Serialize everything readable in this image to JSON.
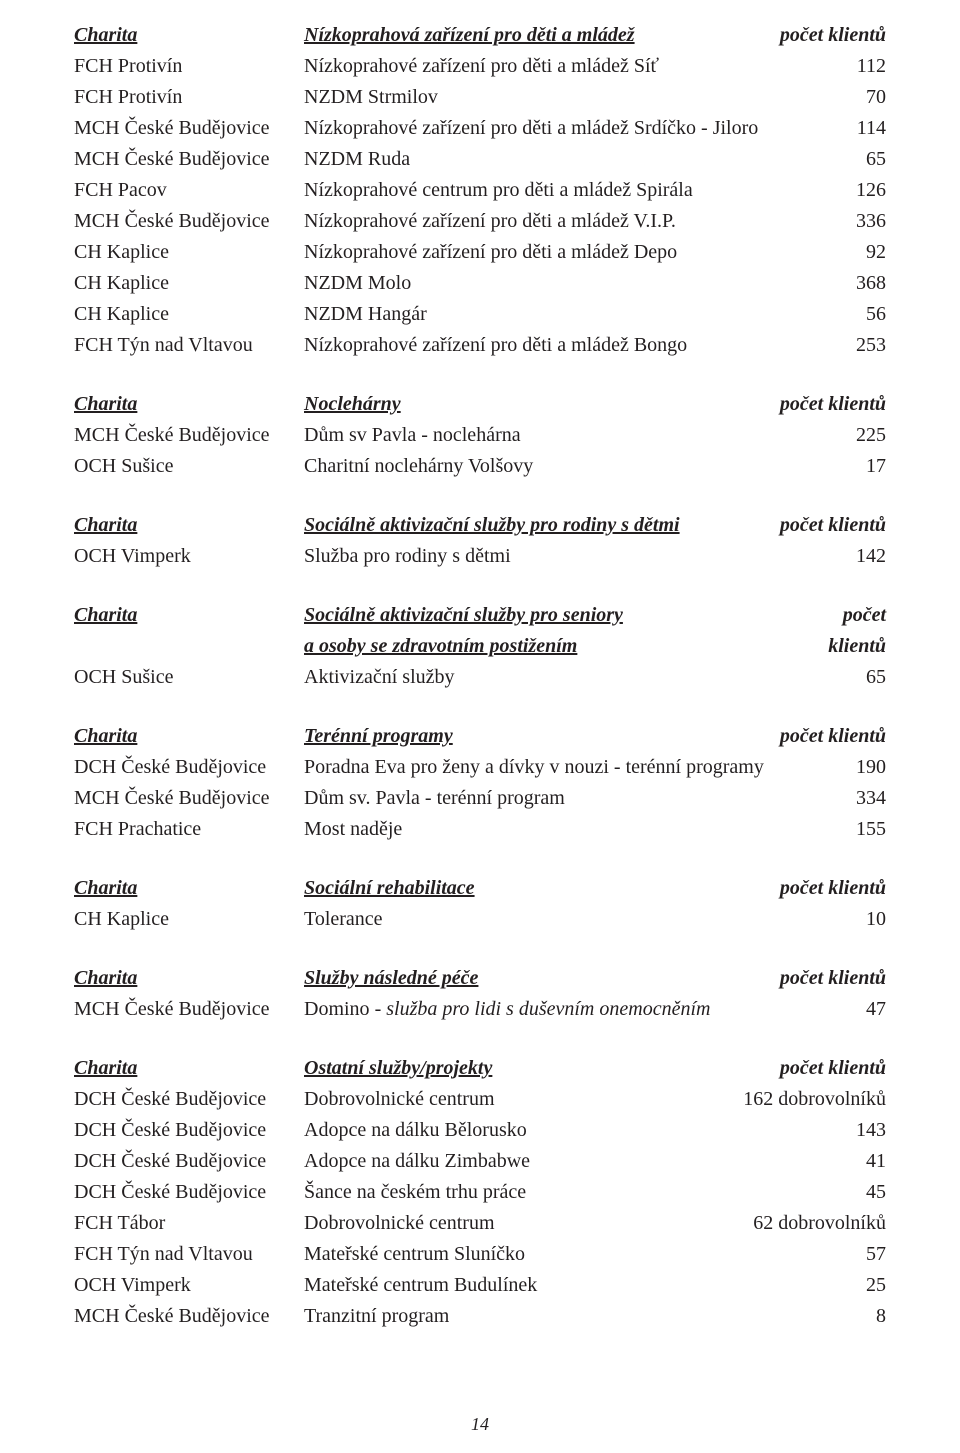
{
  "page_number": "14",
  "labels": {
    "charita": "Charita",
    "pocet_klientu": "počet klientů",
    "pocet": "počet",
    "klientu": "klientů"
  },
  "sections": [
    {
      "title": "Nízkoprahová zařízení pro děti a mládež",
      "count_label": "počet klientů",
      "rows": [
        {
          "org": "FCH Protivín",
          "svc": "Nízkoprahové zařízení pro děti a mládež Síť",
          "val": "112"
        },
        {
          "org": "FCH Protivín",
          "svc": "NZDM Strmilov",
          "val": "70"
        },
        {
          "org": "MCH České Budějovice",
          "svc": "Nízkoprahové zařízení pro děti a mládež Srdíčko - Jiloro",
          "val": "114"
        },
        {
          "org": "MCH České Budějovice",
          "svc": "NZDM Ruda",
          "val": "65"
        },
        {
          "org": "FCH Pacov",
          "svc": "Nízkoprahové centrum pro děti a mládež Spirála",
          "val": "126"
        },
        {
          "org": "MCH České Budějovice",
          "svc": "Nízkoprahové zařízení pro děti a mládež V.I.P.",
          "val": "336"
        },
        {
          "org": "CH Kaplice",
          "svc": "Nízkoprahové zařízení pro děti a mládež Depo",
          "val": "92"
        },
        {
          "org": "CH Kaplice",
          "svc": "NZDM Molo",
          "val": "368"
        },
        {
          "org": "CH Kaplice",
          "svc": "NZDM Hangár",
          "val": "56"
        },
        {
          "org": "FCH Týn nad Vltavou",
          "svc": "Nízkoprahové zařízení pro děti a mládež Bongo",
          "val": "253"
        }
      ]
    },
    {
      "title": "Noclehárny",
      "count_label": "počet klientů",
      "rows": [
        {
          "org": "MCH České Budějovice",
          "svc": "Dům sv Pavla - noclehárna",
          "val": "225"
        },
        {
          "org": "OCH Sušice",
          "svc": "Charitní noclehárny Volšovy",
          "val": "17"
        }
      ]
    },
    {
      "title": "Sociálně aktivizační služby pro rodiny s dětmi",
      "count_label": "počet klientů",
      "rows": [
        {
          "org": "OCH Vimperk",
          "svc": "Služba pro rodiny s dětmi",
          "val": "142"
        }
      ]
    },
    {
      "title": "Sociálně aktivizační služby pro seniory",
      "title2": "a osoby se zdravotním postižením",
      "count_label_split": true,
      "rows": [
        {
          "org": "OCH Sušice",
          "svc": "Aktivizační služby",
          "val": "65"
        }
      ]
    },
    {
      "title": "Terénní programy",
      "count_label": "počet klientů",
      "rows": [
        {
          "org": "DCH České Budějovice",
          "svc": "Poradna Eva pro ženy a dívky v nouzi - terénní programy",
          "val": "190"
        },
        {
          "org": "MCH České Budějovice",
          "svc": "Dům sv. Pavla - terénní program",
          "val": "334"
        },
        {
          "org": "FCH Prachatice",
          "svc": "Most naděje",
          "val": "155"
        }
      ]
    },
    {
      "title": "Sociální rehabilitace",
      "count_label": "počet klientů",
      "rows": [
        {
          "org": "CH Kaplice",
          "svc": "Tolerance",
          "val": "10"
        }
      ]
    },
    {
      "title": "Služby následné péče",
      "count_label": "počet klientů",
      "rows": [
        {
          "org": "MCH České Budějovice",
          "svc": "Domino - služba pro lidi s duševním onemocněním",
          "svc_italic_from": "- služba pro lidi s duševním onemocněním",
          "val": "47"
        }
      ]
    },
    {
      "title": "Ostatní služby/projekty",
      "count_label": "počet klientů",
      "rows": [
        {
          "org": "DCH České Budějovice",
          "svc": "Dobrovolnické centrum",
          "val": "162 dobrovolníků"
        },
        {
          "org": "DCH České Budějovice",
          "svc": "Adopce na dálku Bělorusko",
          "val": "143"
        },
        {
          "org": "DCH České Budějovice",
          "svc": "Adopce na dálku Zimbabwe",
          "val": "41"
        },
        {
          "org": "DCH České Budějovice",
          "svc": "Šance na českém trhu práce",
          "val": "45"
        },
        {
          "org": "FCH Tábor",
          "svc": "Dobrovolnické centrum",
          "val": "62 dobrovolníků"
        },
        {
          "org": "FCH Týn nad Vltavou",
          "svc": "Mateřské centrum Sluníčko",
          "val": "57"
        },
        {
          "org": "OCH Vimperk",
          "svc": "Mateřské centrum Budulínek",
          "val": "25"
        },
        {
          "org": "MCH České Budějovice",
          "svc": "Tranzitní program",
          "val": "8"
        }
      ]
    }
  ]
}
